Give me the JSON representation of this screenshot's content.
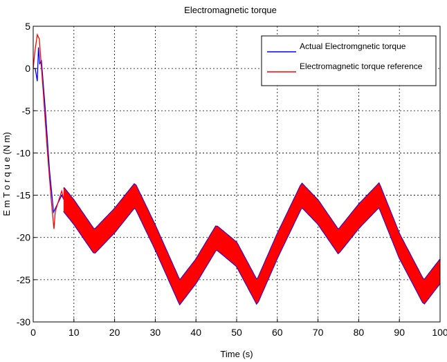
{
  "chart_data": {
    "type": "line",
    "title": "Electromagnetic torque",
    "xlabel": "Time (s)",
    "ylabel": "E m   T o r q u e  (N m)",
    "xlim": [
      0,
      100
    ],
    "ylim": [
      -30,
      5
    ],
    "xticks": [
      0,
      10,
      20,
      30,
      40,
      50,
      60,
      70,
      80,
      90,
      100
    ],
    "yticks": [
      5,
      0,
      -5,
      -10,
      -15,
      -20,
      -25,
      -30
    ],
    "grid": true,
    "legend_position": "top-right",
    "series": [
      {
        "name": "Actual Electromgnetic torque",
        "color": "#0000ff",
        "x": [
          0,
          0.5,
          1,
          1.3,
          1.6,
          2,
          3,
          4,
          5,
          6,
          7,
          7.5,
          10,
          15,
          20,
          25,
          30,
          36,
          40,
          45,
          50,
          55,
          60,
          66,
          70,
          75,
          80,
          85,
          90,
          96,
          100
        ],
        "y": [
          0,
          0,
          -1.5,
          2.5,
          0.5,
          1,
          -5,
          -12,
          -17,
          -16,
          -15,
          -15.5,
          -17,
          -20.5,
          -18,
          -15,
          -20,
          -26.5,
          -24,
          -20,
          -22,
          -26.5,
          -21,
          -15,
          -17,
          -20.5,
          -17.5,
          -15,
          -21,
          -26.5,
          -24
        ]
      },
      {
        "name": "Electromagnetic torque reference",
        "color": "#ff0000",
        "x": [
          0,
          0.4,
          1,
          1.5,
          2.5,
          3.5,
          4.5,
          5.1,
          5.4,
          6,
          7,
          7.5,
          10,
          15,
          20,
          25,
          30,
          36,
          40,
          45,
          50,
          55,
          60,
          66,
          70,
          75,
          80,
          85,
          90,
          96,
          100
        ],
        "y": [
          0,
          2,
          4,
          3.5,
          -3,
          -10,
          -16,
          -19,
          -17,
          -16,
          -14.5,
          -15.5,
          -17,
          -20.5,
          -18,
          -15,
          -20,
          -26.5,
          -24,
          -20,
          -22,
          -26.5,
          -21,
          -15,
          -17,
          -20.5,
          -17.5,
          -15,
          -21,
          -26.5,
          -24
        ]
      }
    ],
    "ripple_band": {
      "x_start": 7.5,
      "x_end": 100,
      "band_width": 2.8,
      "fill_color": "#ff0000",
      "edge_color": "#0000ff"
    }
  }
}
